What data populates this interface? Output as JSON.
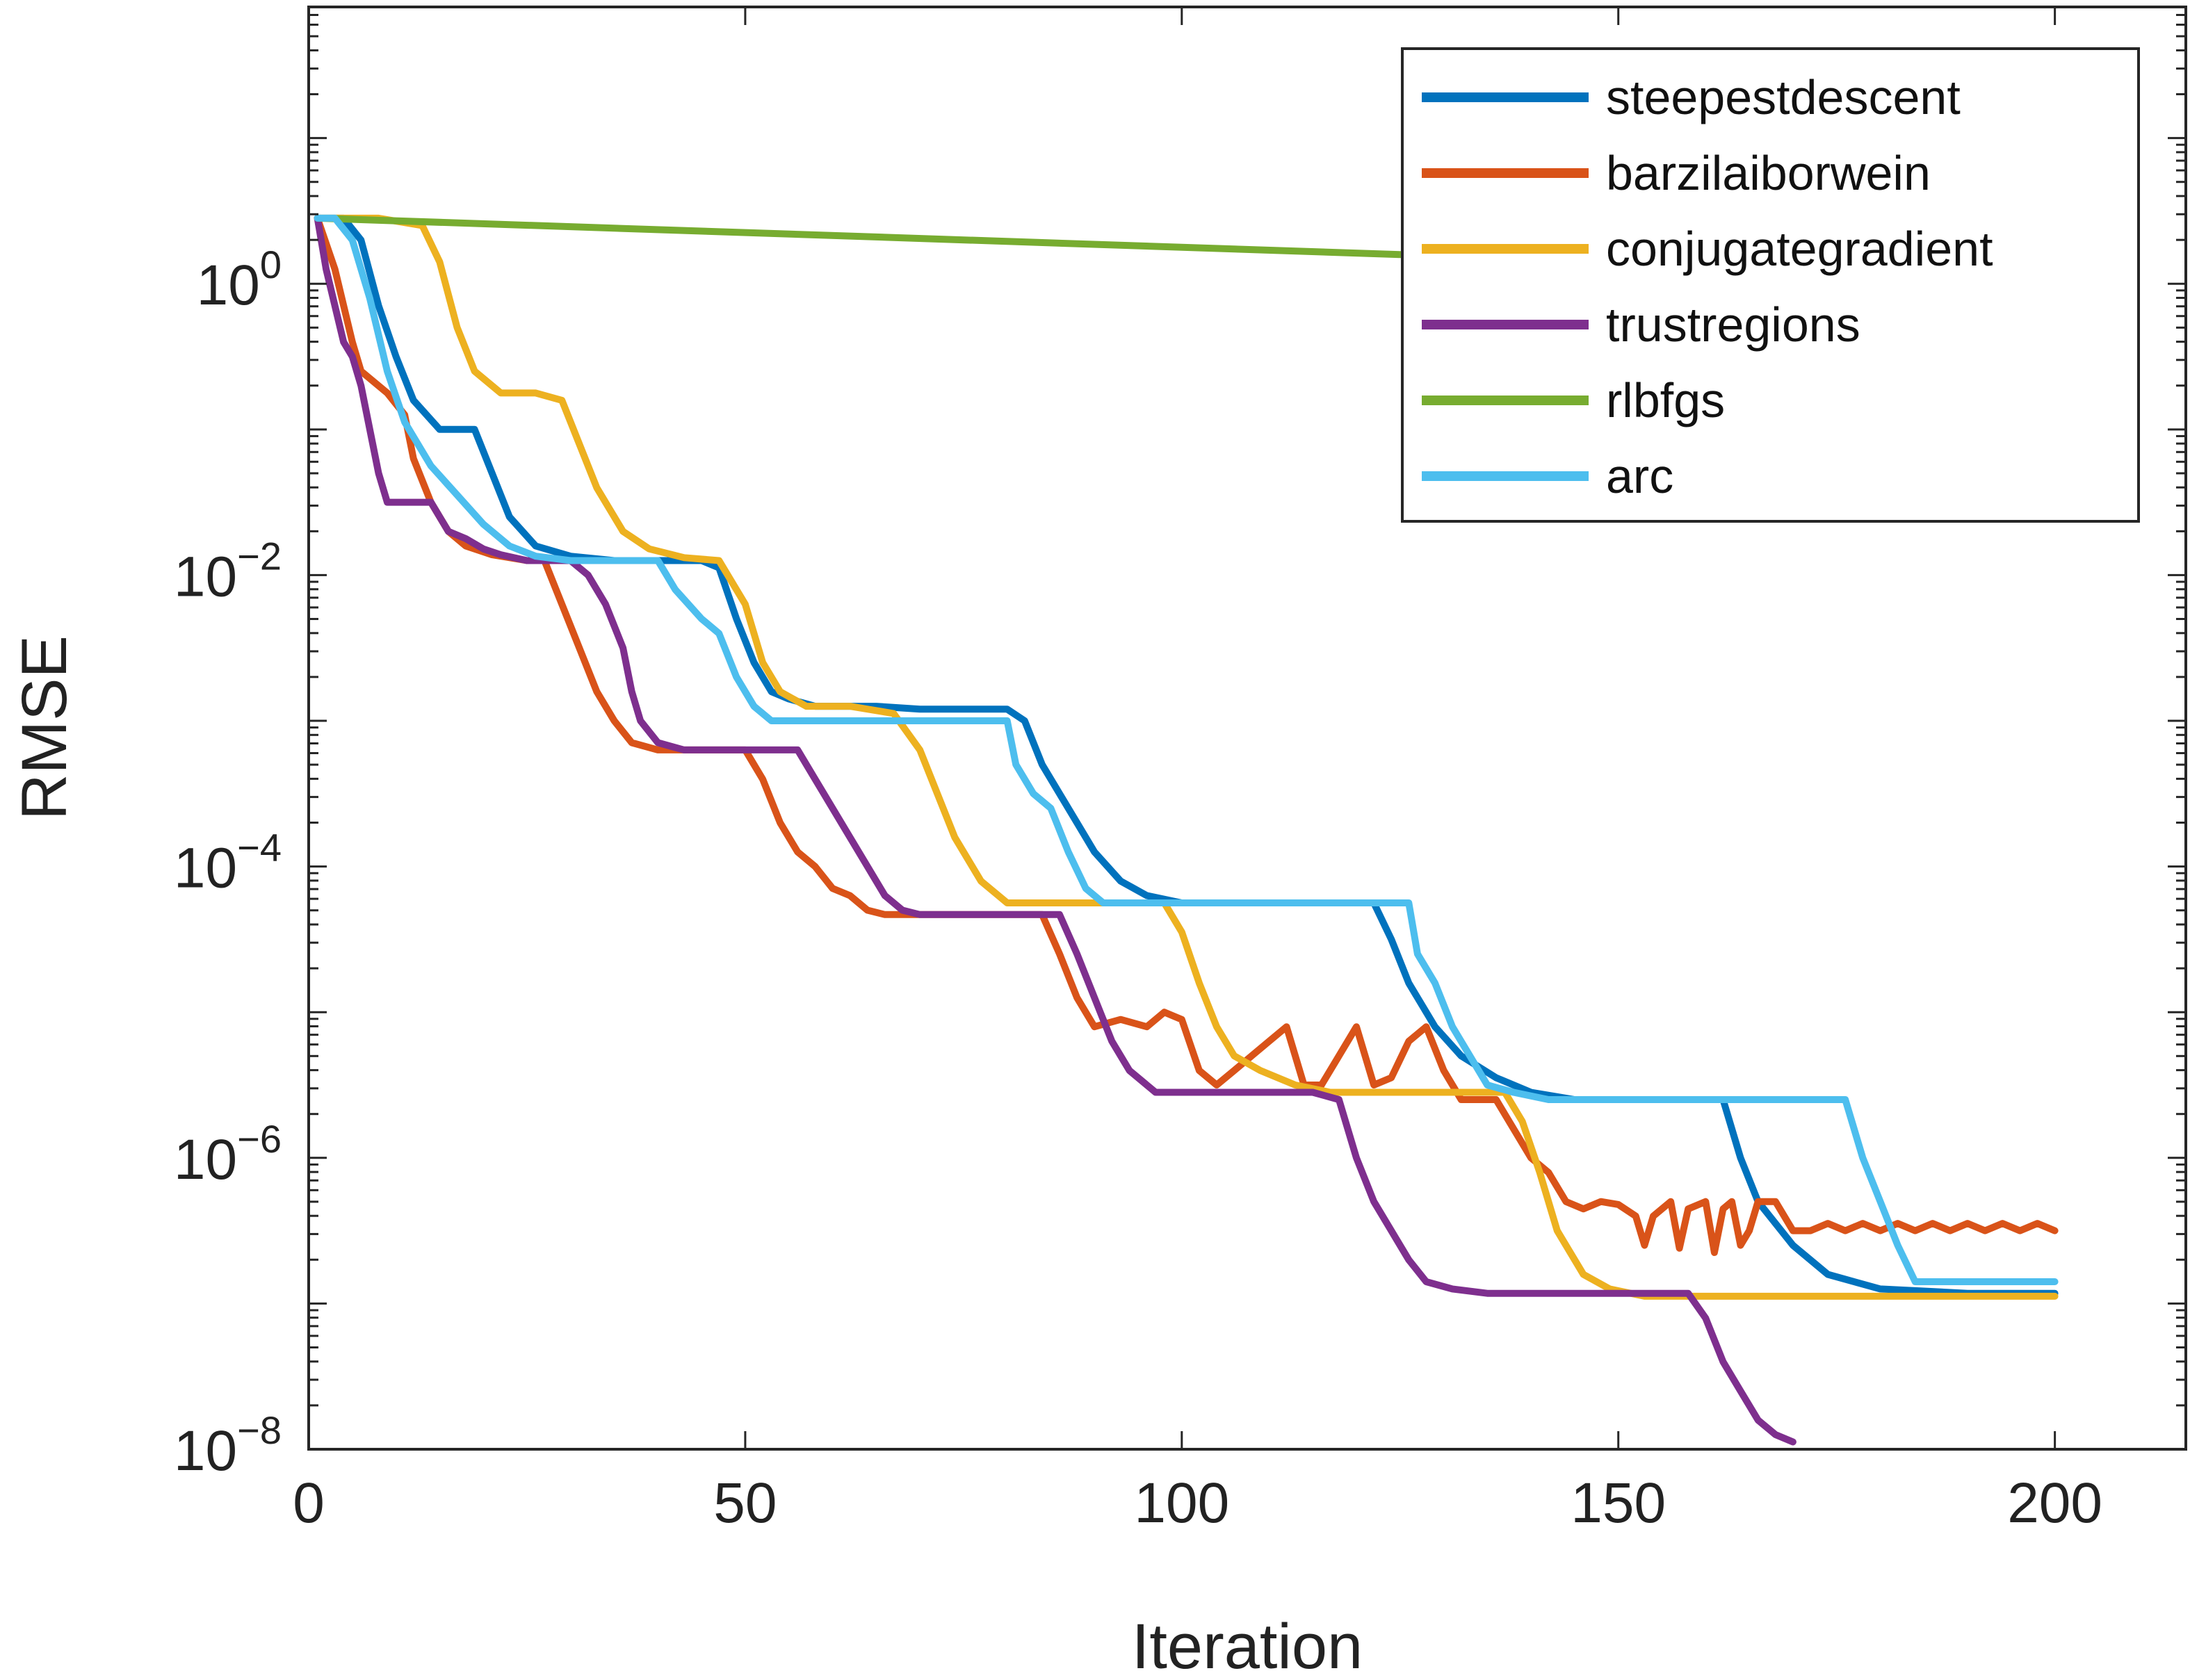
{
  "chart_data": {
    "type": "line",
    "title": "",
    "xlabel": "Iteration",
    "ylabel": "RMSE",
    "xlim": [
      0,
      215
    ],
    "ylim_log10": [
      -8,
      1.9
    ],
    "yscale": "log",
    "xticks": [
      0,
      50,
      100,
      150,
      200
    ],
    "xtick_labels": [
      "0",
      "50",
      "100",
      "150",
      "200"
    ],
    "yticks_log10": [
      0,
      -2,
      -4,
      -6,
      -8
    ],
    "ytick_base": "10",
    "ytick_exponents": [
      "0",
      "−2",
      "−4",
      "−6",
      "−8"
    ],
    "grid": false,
    "legend_position": "top-right",
    "series": [
      {
        "name": "steepestdescent",
        "color": "#0072BD",
        "points_log10": [
          [
            1,
            0.45
          ],
          [
            4,
            0.45
          ],
          [
            6,
            0.3
          ],
          [
            8,
            -0.15
          ],
          [
            10,
            -0.5
          ],
          [
            12,
            -0.8
          ],
          [
            15,
            -1.0
          ],
          [
            19,
            -1.0
          ],
          [
            21,
            -1.3
          ],
          [
            23,
            -1.6
          ],
          [
            26,
            -1.8
          ],
          [
            30,
            -1.87
          ],
          [
            35,
            -1.9
          ],
          [
            40,
            -1.9
          ],
          [
            45,
            -1.9
          ],
          [
            47,
            -1.95
          ],
          [
            49,
            -2.3
          ],
          [
            51,
            -2.6
          ],
          [
            53,
            -2.8
          ],
          [
            55,
            -2.85
          ],
          [
            58,
            -2.9
          ],
          [
            65,
            -2.9
          ],
          [
            70,
            -2.92
          ],
          [
            80,
            -2.92
          ],
          [
            82,
            -3.0
          ],
          [
            84,
            -3.3
          ],
          [
            86,
            -3.5
          ],
          [
            88,
            -3.7
          ],
          [
            90,
            -3.9
          ],
          [
            93,
            -4.1
          ],
          [
            96,
            -4.2
          ],
          [
            100,
            -4.25
          ],
          [
            115,
            -4.25
          ],
          [
            122,
            -4.25
          ],
          [
            124,
            -4.5
          ],
          [
            126,
            -4.8
          ],
          [
            129,
            -5.1
          ],
          [
            132,
            -5.3
          ],
          [
            136,
            -5.45
          ],
          [
            140,
            -5.55
          ],
          [
            145,
            -5.6
          ],
          [
            150,
            -5.6
          ],
          [
            162,
            -5.6
          ],
          [
            164,
            -6.0
          ],
          [
            166,
            -6.3
          ],
          [
            170,
            -6.6
          ],
          [
            174,
            -6.8
          ],
          [
            180,
            -6.9
          ],
          [
            190,
            -6.93
          ],
          [
            200,
            -6.93
          ]
        ]
      },
      {
        "name": "barzilaiborwein",
        "color": "#D95319",
        "points_log10": [
          [
            1,
            0.45
          ],
          [
            3,
            0.1
          ],
          [
            5,
            -0.4
          ],
          [
            6,
            -0.6
          ],
          [
            9,
            -0.75
          ],
          [
            11,
            -0.9
          ],
          [
            12,
            -1.2
          ],
          [
            14,
            -1.5
          ],
          [
            16,
            -1.7
          ],
          [
            18,
            -1.8
          ],
          [
            21,
            -1.86
          ],
          [
            25,
            -1.9
          ],
          [
            27,
            -1.9
          ],
          [
            29,
            -2.2
          ],
          [
            31,
            -2.5
          ],
          [
            33,
            -2.8
          ],
          [
            35,
            -3.0
          ],
          [
            37,
            -3.15
          ],
          [
            40,
            -3.2
          ],
          [
            45,
            -3.2
          ],
          [
            50,
            -3.2
          ],
          [
            52,
            -3.4
          ],
          [
            54,
            -3.7
          ],
          [
            56,
            -3.9
          ],
          [
            58,
            -4.0
          ],
          [
            60,
            -4.15
          ],
          [
            62,
            -4.2
          ],
          [
            64,
            -4.3
          ],
          [
            66,
            -4.33
          ],
          [
            70,
            -4.33
          ],
          [
            75,
            -4.33
          ],
          [
            84,
            -4.33
          ],
          [
            86,
            -4.6
          ],
          [
            88,
            -4.9
          ],
          [
            90,
            -5.1
          ],
          [
            93,
            -5.05
          ],
          [
            96,
            -5.1
          ],
          [
            98,
            -5.0
          ],
          [
            100,
            -5.05
          ],
          [
            102,
            -5.4
          ],
          [
            104,
            -5.5
          ],
          [
            106,
            -5.4
          ],
          [
            108,
            -5.3
          ],
          [
            110,
            -5.2
          ],
          [
            112,
            -5.1
          ],
          [
            114,
            -5.5
          ],
          [
            116,
            -5.5
          ],
          [
            118,
            -5.3
          ],
          [
            120,
            -5.1
          ],
          [
            122,
            -5.5
          ],
          [
            124,
            -5.45
          ],
          [
            126,
            -5.2
          ],
          [
            128,
            -5.1
          ],
          [
            130,
            -5.4
          ],
          [
            132,
            -5.6
          ],
          [
            134,
            -5.6
          ],
          [
            136,
            -5.6
          ],
          [
            138,
            -5.8
          ],
          [
            140,
            -6.0
          ],
          [
            142,
            -6.1
          ],
          [
            144,
            -6.3
          ],
          [
            146,
            -6.35
          ],
          [
            148,
            -6.3
          ],
          [
            150,
            -6.32
          ],
          [
            152,
            -6.4
          ],
          [
            153,
            -6.6
          ],
          [
            154,
            -6.4
          ],
          [
            156,
            -6.3
          ],
          [
            157,
            -6.62
          ],
          [
            158,
            -6.35
          ],
          [
            160,
            -6.3
          ],
          [
            161,
            -6.65
          ],
          [
            162,
            -6.35
          ],
          [
            163,
            -6.3
          ],
          [
            164,
            -6.6
          ],
          [
            165,
            -6.5
          ],
          [
            166,
            -6.3
          ],
          [
            168,
            -6.3
          ],
          [
            170,
            -6.5
          ],
          [
            172,
            -6.5
          ],
          [
            174,
            -6.45
          ],
          [
            176,
            -6.5
          ],
          [
            178,
            -6.45
          ],
          [
            180,
            -6.5
          ],
          [
            182,
            -6.45
          ],
          [
            184,
            -6.5
          ],
          [
            186,
            -6.45
          ],
          [
            188,
            -6.5
          ],
          [
            190,
            -6.45
          ],
          [
            192,
            -6.5
          ],
          [
            194,
            -6.45
          ],
          [
            196,
            -6.5
          ],
          [
            198,
            -6.45
          ],
          [
            200,
            -6.5
          ]
        ]
      },
      {
        "name": "conjugategradient",
        "color": "#EDB120",
        "points_log10": [
          [
            1,
            0.45
          ],
          [
            8,
            0.45
          ],
          [
            13,
            0.4
          ],
          [
            15,
            0.15
          ],
          [
            17,
            -0.3
          ],
          [
            19,
            -0.6
          ],
          [
            22,
            -0.75
          ],
          [
            26,
            -0.75
          ],
          [
            29,
            -0.8
          ],
          [
            31,
            -1.1
          ],
          [
            33,
            -1.4
          ],
          [
            36,
            -1.7
          ],
          [
            39,
            -1.82
          ],
          [
            43,
            -1.88
          ],
          [
            47,
            -1.9
          ],
          [
            50,
            -2.2
          ],
          [
            52,
            -2.6
          ],
          [
            54,
            -2.8
          ],
          [
            57,
            -2.9
          ],
          [
            62,
            -2.9
          ],
          [
            67,
            -2.95
          ],
          [
            70,
            -3.2
          ],
          [
            72,
            -3.5
          ],
          [
            74,
            -3.8
          ],
          [
            77,
            -4.1
          ],
          [
            80,
            -4.25
          ],
          [
            85,
            -4.25
          ],
          [
            98,
            -4.25
          ],
          [
            100,
            -4.45
          ],
          [
            102,
            -4.8
          ],
          [
            104,
            -5.1
          ],
          [
            106,
            -5.3
          ],
          [
            109,
            -5.4
          ],
          [
            113,
            -5.5
          ],
          [
            117,
            -5.55
          ],
          [
            125,
            -5.55
          ],
          [
            137,
            -5.55
          ],
          [
            139,
            -5.75
          ],
          [
            141,
            -6.1
          ],
          [
            143,
            -6.5
          ],
          [
            146,
            -6.8
          ],
          [
            149,
            -6.9
          ],
          [
            153,
            -6.95
          ],
          [
            160,
            -6.95
          ],
          [
            180,
            -6.95
          ],
          [
            200,
            -6.95
          ]
        ]
      },
      {
        "name": "trustregions",
        "color": "#7E2F8E",
        "points_log10": [
          [
            1,
            0.45
          ],
          [
            2,
            0.1
          ],
          [
            4,
            -0.4
          ],
          [
            5,
            -0.5
          ],
          [
            6,
            -0.7
          ],
          [
            7,
            -1.0
          ],
          [
            8,
            -1.3
          ],
          [
            9,
            -1.5
          ],
          [
            11,
            -1.5
          ],
          [
            14,
            -1.5
          ],
          [
            16,
            -1.7
          ],
          [
            18,
            -1.75
          ],
          [
            20,
            -1.82
          ],
          [
            22,
            -1.86
          ],
          [
            25,
            -1.9
          ],
          [
            30,
            -1.9
          ],
          [
            32,
            -2.0
          ],
          [
            34,
            -2.2
          ],
          [
            36,
            -2.5
          ],
          [
            37,
            -2.8
          ],
          [
            38,
            -3.0
          ],
          [
            40,
            -3.15
          ],
          [
            43,
            -3.2
          ],
          [
            50,
            -3.2
          ],
          [
            56,
            -3.2
          ],
          [
            58,
            -3.4
          ],
          [
            60,
            -3.6
          ],
          [
            62,
            -3.8
          ],
          [
            64,
            -4.0
          ],
          [
            66,
            -4.2
          ],
          [
            68,
            -4.3
          ],
          [
            70,
            -4.33
          ],
          [
            75,
            -4.33
          ],
          [
            80,
            -4.33
          ],
          [
            86,
            -4.33
          ],
          [
            88,
            -4.6
          ],
          [
            90,
            -4.9
          ],
          [
            92,
            -5.2
          ],
          [
            94,
            -5.4
          ],
          [
            97,
            -5.55
          ],
          [
            100,
            -5.55
          ],
          [
            115,
            -5.55
          ],
          [
            118,
            -5.6
          ],
          [
            120,
            -6.0
          ],
          [
            122,
            -6.3
          ],
          [
            124,
            -6.5
          ],
          [
            126,
            -6.7
          ],
          [
            128,
            -6.85
          ],
          [
            131,
            -6.9
          ],
          [
            135,
            -6.93
          ],
          [
            158,
            -6.93
          ],
          [
            160,
            -7.1
          ],
          [
            162,
            -7.4
          ],
          [
            164,
            -7.6
          ],
          [
            166,
            -7.8
          ],
          [
            168,
            -7.9
          ],
          [
            170,
            -7.95
          ]
        ]
      },
      {
        "name": "rlbfgs",
        "color": "#77AC30",
        "points_log10": [
          [
            1,
            0.45
          ],
          [
            125,
            0.2
          ],
          [
            126,
            0.2
          ]
        ]
      },
      {
        "name": "arc",
        "color": "#4DBEEE",
        "points_log10": [
          [
            1,
            0.45
          ],
          [
            3,
            0.45
          ],
          [
            5,
            0.3
          ],
          [
            7,
            -0.1
          ],
          [
            9,
            -0.6
          ],
          [
            11,
            -0.95
          ],
          [
            14,
            -1.25
          ],
          [
            17,
            -1.45
          ],
          [
            20,
            -1.65
          ],
          [
            23,
            -1.8
          ],
          [
            26,
            -1.87
          ],
          [
            30,
            -1.9
          ],
          [
            40,
            -1.9
          ],
          [
            42,
            -2.1
          ],
          [
            45,
            -2.3
          ],
          [
            47,
            -2.4
          ],
          [
            49,
            -2.7
          ],
          [
            51,
            -2.9
          ],
          [
            53,
            -3.0
          ],
          [
            58,
            -3.0
          ],
          [
            65,
            -3.0
          ],
          [
            80,
            -3.0
          ],
          [
            81,
            -3.3
          ],
          [
            83,
            -3.5
          ],
          [
            85,
            -3.6
          ],
          [
            87,
            -3.9
          ],
          [
            89,
            -4.15
          ],
          [
            91,
            -4.25
          ],
          [
            100,
            -4.25
          ],
          [
            126,
            -4.25
          ],
          [
            127,
            -4.6
          ],
          [
            129,
            -4.8
          ],
          [
            131,
            -5.1
          ],
          [
            133,
            -5.3
          ],
          [
            135,
            -5.5
          ],
          [
            138,
            -5.55
          ],
          [
            142,
            -5.6
          ],
          [
            150,
            -5.6
          ],
          [
            176,
            -5.6
          ],
          [
            178,
            -6.0
          ],
          [
            180,
            -6.3
          ],
          [
            182,
            -6.6
          ],
          [
            184,
            -6.85
          ],
          [
            190,
            -6.85
          ],
          [
            200,
            -6.85
          ]
        ]
      }
    ]
  }
}
